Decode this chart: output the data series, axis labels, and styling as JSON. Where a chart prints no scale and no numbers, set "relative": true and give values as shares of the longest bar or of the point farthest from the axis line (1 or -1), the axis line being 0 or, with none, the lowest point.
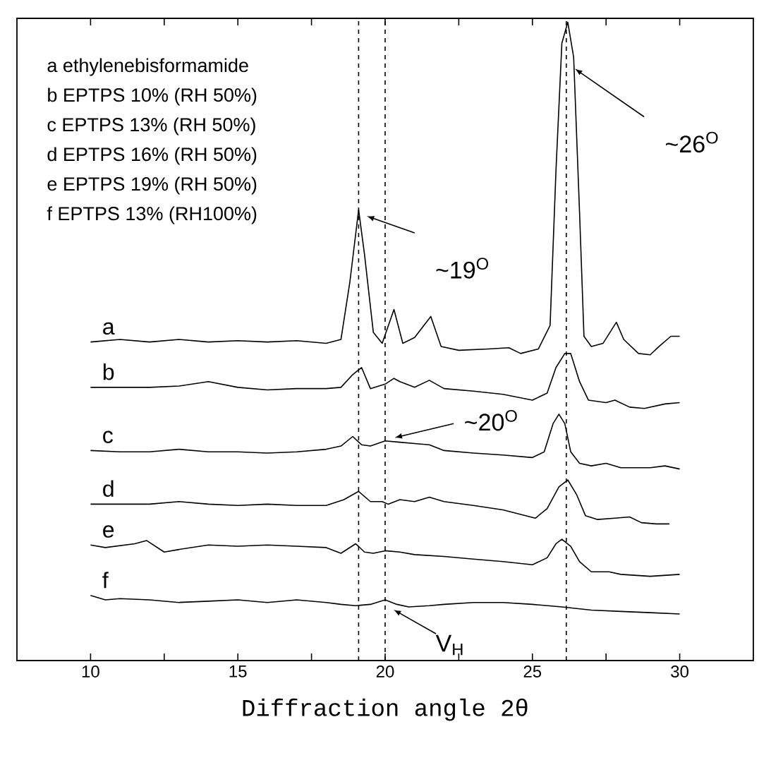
{
  "chart_data": {
    "type": "line",
    "relative": true,
    "xlabel": "Diffraction angle 2θ",
    "xlim": [
      7.5,
      32.5
    ],
    "xticks": [
      10,
      {
        "value": 12.5,
        "label": null
      },
      15,
      {
        "value": 17.5,
        "label": null
      },
      20,
      {
        "value": 22.5,
        "label": null
      },
      25,
      {
        "value": 27.5,
        "label": null
      },
      30
    ],
    "marker": "none",
    "line_style": "solid",
    "series": [
      {
        "name": "a",
        "color": "#000000",
        "x": [
          10,
          11,
          12,
          13,
          14,
          15,
          16,
          17,
          18,
          18.5,
          18.8,
          19.1,
          19.3,
          19.6,
          19.9,
          20.3,
          20.6,
          21.0,
          21.55,
          21.9,
          22.5,
          23.5,
          24.2,
          24.6,
          25.2,
          25.6,
          25.8,
          26.0,
          26.2,
          26.4,
          26.6,
          26.75,
          27.0,
          27.4,
          27.85,
          28.1,
          28.6,
          29.0,
          29.3,
          29.7,
          30.0
        ],
        "values": [
          0.499,
          0.503,
          0.499,
          0.503,
          0.499,
          0.501,
          0.499,
          0.501,
          0.497,
          0.503,
          0.592,
          0.706,
          0.636,
          0.514,
          0.497,
          0.55,
          0.497,
          0.506,
          0.539,
          0.492,
          0.486,
          0.488,
          0.49,
          0.481,
          0.488,
          0.525,
          0.768,
          0.967,
          1.0,
          0.945,
          0.702,
          0.508,
          0.492,
          0.497,
          0.53,
          0.503,
          0.481,
          0.479,
          0.492,
          0.508,
          0.508
        ]
      },
      {
        "name": "b",
        "color": "#000000",
        "x": [
          10,
          11,
          12,
          13,
          14,
          15,
          16,
          17,
          18,
          18.5,
          18.9,
          19.2,
          19.5,
          20.0,
          20.3,
          20.5,
          21.0,
          21.5,
          22,
          23,
          24,
          25,
          25.5,
          25.8,
          26.1,
          26.3,
          26.6,
          26.9,
          27.5,
          27.8,
          28.3,
          28.8,
          29.5,
          30
        ],
        "values": [
          0.428,
          0.428,
          0.428,
          0.43,
          0.437,
          0.428,
          0.424,
          0.426,
          0.426,
          0.428,
          0.448,
          0.459,
          0.426,
          0.433,
          0.442,
          0.437,
          0.428,
          0.439,
          0.426,
          0.422,
          0.417,
          0.408,
          0.419,
          0.459,
          0.481,
          0.481,
          0.437,
          0.408,
          0.404,
          0.408,
          0.397,
          0.395,
          0.402,
          0.404
        ]
      },
      {
        "name": "c",
        "color": "#000000",
        "x": [
          10,
          11,
          12,
          13,
          14,
          15,
          16,
          17,
          18,
          18.5,
          18.9,
          19.2,
          19.5,
          20.0,
          20.5,
          21.0,
          21.5,
          22,
          23,
          24,
          25,
          25.4,
          25.7,
          25.9,
          26.1,
          26.3,
          26.6,
          27,
          27.5,
          28,
          29,
          29.5,
          30
        ],
        "values": [
          0.329,
          0.327,
          0.327,
          0.331,
          0.327,
          0.327,
          0.325,
          0.327,
          0.331,
          0.336,
          0.351,
          0.338,
          0.336,
          0.344,
          0.342,
          0.34,
          0.338,
          0.329,
          0.325,
          0.322,
          0.318,
          0.327,
          0.371,
          0.386,
          0.371,
          0.327,
          0.309,
          0.305,
          0.309,
          0.302,
          0.302,
          0.305,
          0.3
        ]
      },
      {
        "name": "d",
        "color": "#000000",
        "x": [
          10,
          11,
          12,
          13,
          14,
          15,
          16,
          17,
          18,
          18.6,
          19.1,
          19.5,
          19.9,
          20.1,
          20.5,
          21,
          21.5,
          22,
          23,
          24,
          25.1,
          25.5,
          25.9,
          26.2,
          26.5,
          26.8,
          27.2,
          27.8,
          28.3,
          28.7,
          29.2,
          29.65
        ],
        "values": [
          0.245,
          0.245,
          0.245,
          0.249,
          0.245,
          0.243,
          0.245,
          0.243,
          0.243,
          0.252,
          0.265,
          0.249,
          0.249,
          0.245,
          0.252,
          0.249,
          0.256,
          0.249,
          0.243,
          0.236,
          0.223,
          0.238,
          0.272,
          0.283,
          0.26,
          0.227,
          0.221,
          0.223,
          0.225,
          0.216,
          0.214,
          0.214
        ]
      },
      {
        "name": "e",
        "color": "#000000",
        "x": [
          10,
          10.5,
          11.5,
          11.9,
          12.5,
          13,
          14,
          15,
          16,
          17,
          18,
          18.5,
          19.0,
          19.3,
          19.6,
          20,
          20.5,
          21,
          22,
          23,
          24,
          25,
          25.5,
          25.8,
          26.0,
          26.3,
          26.6,
          27,
          27.6,
          28,
          29,
          30
        ],
        "values": [
          0.181,
          0.177,
          0.183,
          0.188,
          0.17,
          0.174,
          0.181,
          0.179,
          0.181,
          0.179,
          0.177,
          0.168,
          0.183,
          0.17,
          0.168,
          0.172,
          0.17,
          0.166,
          0.163,
          0.159,
          0.155,
          0.15,
          0.161,
          0.183,
          0.19,
          0.179,
          0.155,
          0.139,
          0.139,
          0.135,
          0.132,
          0.135
        ]
      },
      {
        "name": "f",
        "color": "#000000",
        "x": [
          10,
          10.5,
          11,
          12,
          13,
          14,
          15,
          16,
          17,
          18,
          18.5,
          19,
          19.5,
          20,
          20.4,
          20.8,
          21.5,
          22,
          23,
          24,
          25,
          26,
          27,
          28,
          29,
          30
        ],
        "values": [
          0.102,
          0.095,
          0.097,
          0.095,
          0.091,
          0.093,
          0.095,
          0.091,
          0.095,
          0.091,
          0.088,
          0.086,
          0.088,
          0.095,
          0.088,
          0.084,
          0.086,
          0.088,
          0.091,
          0.091,
          0.088,
          0.084,
          0.079,
          0.077,
          0.075,
          0.073
        ]
      }
    ],
    "ref_lines": [
      {
        "axis": "x",
        "value": 19.1,
        "line_style": "dashed",
        "color": "#000000"
      },
      {
        "axis": "x",
        "value": 20.0,
        "line_style": "dashed",
        "color": "#000000"
      },
      {
        "axis": "x",
        "value": 26.15,
        "line_style": "dashed",
        "color": "#000000"
      }
    ],
    "annotations": [
      "a ethylenebisformamide",
      "b EPTPS 10% (RH 50%)",
      "c EPTPS 13% (RH 50%)",
      "d EPTPS 16% (RH 50%)",
      "e EPTPS 19% (RH 50%)",
      "f  EPTPS 13% (RH100%)",
      "~19$^{O}$",
      "~20$^{O}$",
      {
        "text": "~26$^{O}$",
        "x": 26.3,
        "y": 0.927
      },
      {
        "text": "V$_{H}$",
        "x": 20.0,
        "y": 0.095
      }
    ]
  }
}
